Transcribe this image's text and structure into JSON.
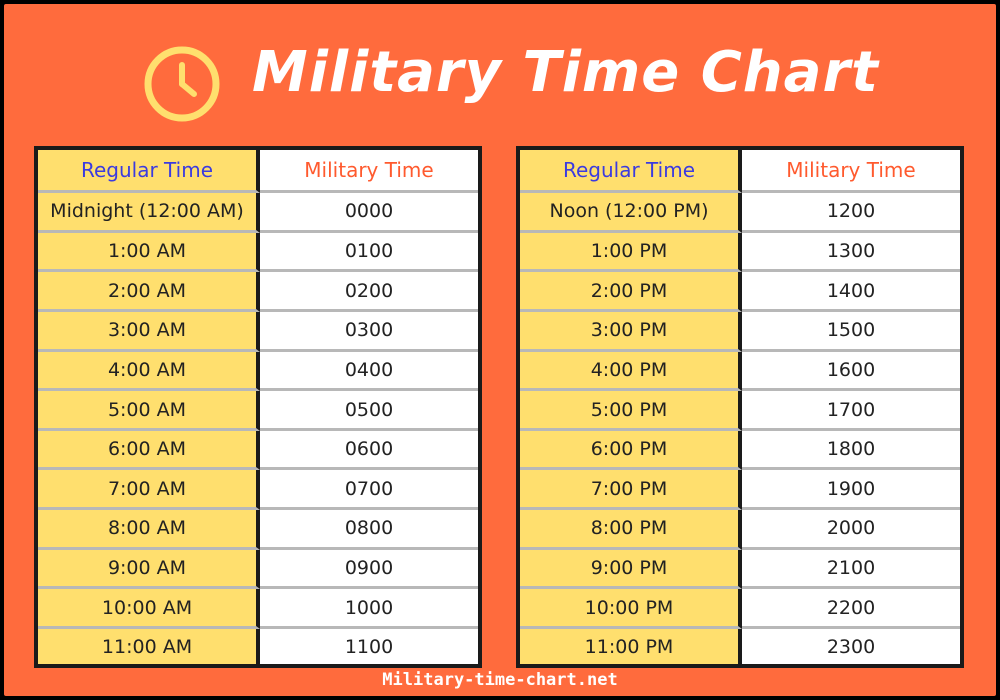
{
  "title": "Military Time Chart",
  "icon": "clock-icon",
  "colors": {
    "background": "#ff6b3d",
    "regular_column": "#ffdf6e",
    "regular_header_text": "#3b3be0",
    "military_header_text": "#ff5a2e",
    "clock_icon": "#ffdf6e"
  },
  "tables": [
    {
      "headers": {
        "regular": "Regular Time",
        "military": "Military Time"
      },
      "rows": [
        {
          "regular": "Midnight (12:00 AM)",
          "military": "0000"
        },
        {
          "regular": "1:00 AM",
          "military": "0100"
        },
        {
          "regular": "2:00 AM",
          "military": "0200"
        },
        {
          "regular": "3:00 AM",
          "military": "0300"
        },
        {
          "regular": "4:00 AM",
          "military": "0400"
        },
        {
          "regular": "5:00 AM",
          "military": "0500"
        },
        {
          "regular": "6:00 AM",
          "military": "0600"
        },
        {
          "regular": "7:00 AM",
          "military": "0700"
        },
        {
          "regular": "8:00 AM",
          "military": "0800"
        },
        {
          "regular": "9:00 AM",
          "military": "0900"
        },
        {
          "regular": "10:00 AM",
          "military": "1000"
        },
        {
          "regular": "11:00 AM",
          "military": "1100"
        }
      ]
    },
    {
      "headers": {
        "regular": "Regular Time",
        "military": "Military Time"
      },
      "rows": [
        {
          "regular": "Noon (12:00 PM)",
          "military": "1200"
        },
        {
          "regular": "1:00 PM",
          "military": "1300"
        },
        {
          "regular": "2:00 PM",
          "military": "1400"
        },
        {
          "regular": "3:00 PM",
          "military": "1500"
        },
        {
          "regular": "4:00 PM",
          "military": "1600"
        },
        {
          "regular": "5:00 PM",
          "military": "1700"
        },
        {
          "regular": "6:00 PM",
          "military": "1800"
        },
        {
          "regular": "7:00 PM",
          "military": "1900"
        },
        {
          "regular": "8:00 PM",
          "military": "2000"
        },
        {
          "regular": "9:00 PM",
          "military": "2100"
        },
        {
          "regular": "10:00 PM",
          "military": "2200"
        },
        {
          "regular": "11:00 PM",
          "military": "2300"
        }
      ]
    }
  ],
  "footer": "Military-time-chart.net"
}
